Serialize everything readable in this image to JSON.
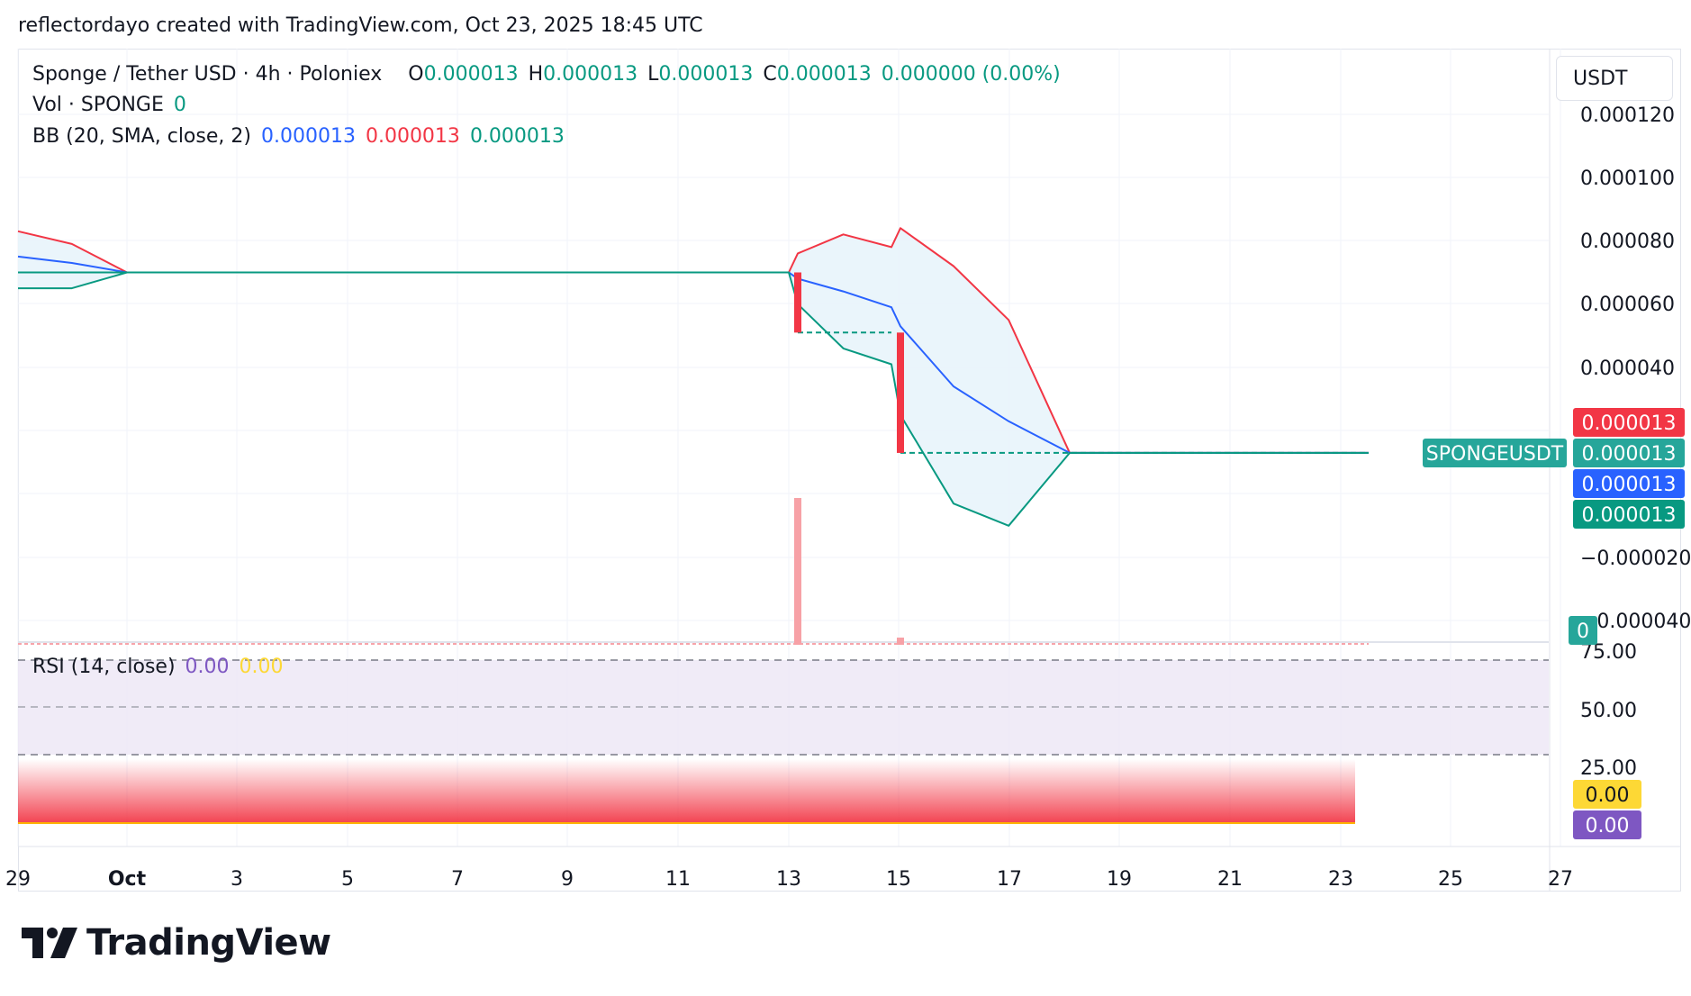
{
  "header": {
    "credit": "reflectordayo created with TradingView.com, Oct 23, 2025 18:45 UTC"
  },
  "legend": {
    "symbol": "Sponge / Tether USD · 4h · Poloniex",
    "open_label": "O",
    "open": "0.000013",
    "high_label": "H",
    "high": "0.000013",
    "low_label": "L",
    "low": "0.000013",
    "close_label": "C",
    "close": "0.000013",
    "change": "0.000000 (0.00%)",
    "vol_label": "Vol · SPONGE",
    "vol_value": "0",
    "bb_label": "BB (20, SMA, close, 2)",
    "bb_basis": "0.000013",
    "bb_upper": "0.000013",
    "bb_lower": "0.000013",
    "rsi_label": "RSI (14, close)",
    "rsi_value": "0.00",
    "rsi_ma": "0.00"
  },
  "price_axis": {
    "unit": "USDT",
    "ticks": [
      "0.000120",
      "0.000100",
      "0.000080",
      "0.000060",
      "0.000040",
      "−0.000020",
      "−0.000040"
    ],
    "badges": {
      "symbol": "SPONGEUSDT",
      "upper": "0.000013",
      "last": "0.000013",
      "basis": "0.000013",
      "lower": "0.000013",
      "volume": "0"
    }
  },
  "rsi_axis": {
    "ticks": [
      "75.00",
      "50.00",
      "25.00"
    ],
    "rsi_badge": "0.00",
    "ma_badge": "0.00"
  },
  "time_axis": {
    "labels": [
      "29",
      "Oct",
      "3",
      "5",
      "7",
      "9",
      "11",
      "13",
      "15",
      "17",
      "19",
      "21",
      "23",
      "25",
      "27"
    ]
  },
  "branding": {
    "logo_text": "TradingView",
    "logo_icon": "tradingview-logo-icon"
  },
  "colors": {
    "up": "#089981",
    "down": "#f23645",
    "bb_basis": "#2962ff",
    "bb_upper": "#f23645",
    "bb_lower": "#089981",
    "bb_fill": "#e8f4fb",
    "rsi_band": "#7e57c2",
    "rsi_ma": "#fdd835"
  },
  "chart_data": {
    "type": "candlestick",
    "symbol": "SPONGEUSDT",
    "interval": "4h",
    "exchange": "Poloniex",
    "x_labels": [
      "29",
      "Oct",
      "3",
      "5",
      "7",
      "9",
      "11",
      "13",
      "15",
      "17",
      "19",
      "21",
      "23",
      "25",
      "27"
    ],
    "ylim": [
      -4e-05,
      0.00012
    ],
    "candles": [
      {
        "date": "Oct 13",
        "open": 7e-05,
        "close": 5.1e-05,
        "direction": "down"
      },
      {
        "date": "Oct 15",
        "open": 5.1e-05,
        "close": 1.3e-05,
        "direction": "down"
      }
    ],
    "price_line": [
      {
        "date": "Sep 29",
        "value": 7e-05
      },
      {
        "date": "Oct 13",
        "value": 7e-05
      },
      {
        "date": "Oct 13",
        "value": 5.1e-05
      },
      {
        "date": "Oct 15",
        "value": 5.1e-05
      },
      {
        "date": "Oct 15",
        "value": 1.3e-05
      },
      {
        "date": "Oct 23",
        "value": 1.3e-05
      }
    ],
    "bollinger": {
      "dates": [
        "Sep 29",
        "Sep 30",
        "Oct 1",
        "Oct 13",
        "Oct 13",
        "Oct 14",
        "Oct 15",
        "Oct 15",
        "Oct 16",
        "Oct 17",
        "Oct 18",
        "Oct 23"
      ],
      "upper": [
        8.3e-05,
        7.9e-05,
        7e-05,
        7e-05,
        7.6e-05,
        8.2e-05,
        7.8e-05,
        8.4e-05,
        7.2e-05,
        5.5e-05,
        1.3e-05,
        1.3e-05
      ],
      "basis": [
        7.5e-05,
        7.3e-05,
        7e-05,
        7e-05,
        6.8e-05,
        6.4e-05,
        5.9e-05,
        5.3e-05,
        3.4e-05,
        2.3e-05,
        1.3e-05,
        1.3e-05
      ],
      "lower": [
        6.5e-05,
        6.5e-05,
        7e-05,
        7e-05,
        6e-05,
        4.6e-05,
        4.1e-05,
        2.5e-05,
        -3e-06,
        -1e-05,
        1.3e-05,
        1.3e-05
      ]
    },
    "volume": [
      {
        "date": "Oct 13",
        "value": "large"
      },
      {
        "date": "Oct 15",
        "value": "small"
      }
    ],
    "rsi": {
      "value": 0.0,
      "ma": 0.0,
      "levels": [
        75,
        50,
        25
      ]
    }
  }
}
